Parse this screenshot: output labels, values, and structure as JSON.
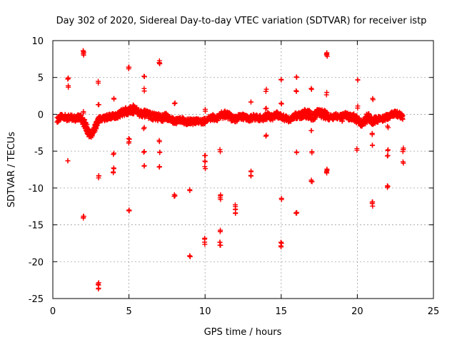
{
  "chart_data": {
    "type": "scatter",
    "title": "Day 302 of 2020, Sidereal Day-to-day VTEC variation (SDTVAR) for receiver istp",
    "xlabel": "GPS time / hours",
    "ylabel": "SDTVAR / TECUs",
    "xlim": [
      0,
      25
    ],
    "ylim": [
      -25,
      10
    ],
    "xticks": [
      0,
      5,
      10,
      15,
      20,
      25
    ],
    "xtick_labels": [
      "0",
      "5",
      "10",
      "15",
      "20",
      "25"
    ],
    "yticks": [
      -25,
      -20,
      -15,
      -10,
      -5,
      0,
      5,
      10
    ],
    "ytick_labels": [
      "-25",
      "-20",
      "-15",
      "-10",
      "-5",
      "0",
      "5",
      "10"
    ],
    "grid": true,
    "marker": "+",
    "color": "#ff0000",
    "series": [
      {
        "name": "SDTVAR",
        "band": [
          [
            0.3,
            -0.7,
            0.4
          ],
          [
            0.6,
            -0.2,
            0.4
          ],
          [
            0.9,
            -0.5,
            0.4
          ],
          [
            1.2,
            -0.4,
            0.4
          ],
          [
            1.5,
            -0.6,
            0.4
          ],
          [
            1.8,
            -0.3,
            0.4
          ],
          [
            2.0,
            -1.0,
            0.5
          ],
          [
            2.2,
            -1.8,
            0.6
          ],
          [
            2.4,
            -2.8,
            0.5
          ],
          [
            2.6,
            -2.5,
            0.5
          ],
          [
            2.8,
            -1.8,
            0.5
          ],
          [
            3.0,
            -0.7,
            0.4
          ],
          [
            3.3,
            -0.6,
            0.4
          ],
          [
            3.6,
            -0.4,
            0.4
          ],
          [
            3.9,
            -0.2,
            0.4
          ],
          [
            4.2,
            -0.2,
            0.4
          ],
          [
            4.5,
            0.2,
            0.5
          ],
          [
            4.8,
            0.4,
            0.5
          ],
          [
            5.1,
            0.5,
            0.6
          ],
          [
            5.4,
            0.6,
            0.5
          ],
          [
            5.7,
            0.2,
            0.5
          ],
          [
            6.0,
            0.1,
            0.5
          ],
          [
            6.3,
            -0.1,
            0.5
          ],
          [
            6.6,
            -0.3,
            0.5
          ],
          [
            6.9,
            -0.4,
            0.5
          ],
          [
            7.2,
            -0.5,
            0.5
          ],
          [
            7.5,
            -0.3,
            0.5
          ],
          [
            7.8,
            -0.8,
            0.4
          ],
          [
            8.1,
            -0.9,
            0.4
          ],
          [
            8.4,
            -0.7,
            0.4
          ],
          [
            8.7,
            -1.0,
            0.4
          ],
          [
            9.0,
            -1.0,
            0.4
          ],
          [
            9.3,
            -1.0,
            0.4
          ],
          [
            9.6,
            -0.9,
            0.4
          ],
          [
            9.9,
            -1.0,
            0.4
          ],
          [
            10.2,
            -0.6,
            0.4
          ],
          [
            10.5,
            -0.4,
            0.4
          ],
          [
            10.8,
            -0.6,
            0.4
          ],
          [
            11.1,
            -0.1,
            0.5
          ],
          [
            11.4,
            0.0,
            0.5
          ],
          [
            11.7,
            -0.4,
            0.5
          ],
          [
            12.0,
            -0.7,
            0.4
          ],
          [
            12.3,
            -0.3,
            0.4
          ],
          [
            12.6,
            -0.4,
            0.4
          ],
          [
            12.9,
            -0.6,
            0.4
          ],
          [
            13.2,
            -0.4,
            0.4
          ],
          [
            13.5,
            -0.5,
            0.4
          ],
          [
            13.8,
            -0.5,
            0.4
          ],
          [
            14.1,
            -0.2,
            0.5
          ],
          [
            14.4,
            -0.4,
            0.4
          ],
          [
            14.7,
            -0.1,
            0.5
          ],
          [
            15.0,
            -0.3,
            0.4
          ],
          [
            15.3,
            -0.6,
            0.4
          ],
          [
            15.6,
            -0.7,
            0.4
          ],
          [
            15.9,
            -0.2,
            0.4
          ],
          [
            16.2,
            -0.2,
            0.5
          ],
          [
            16.5,
            0.1,
            0.6
          ],
          [
            16.8,
            0.0,
            0.6
          ],
          [
            17.1,
            -0.4,
            0.5
          ],
          [
            17.4,
            0.2,
            0.6
          ],
          [
            17.7,
            0.1,
            0.6
          ],
          [
            18.0,
            -0.1,
            0.6
          ],
          [
            18.3,
            -0.5,
            0.4
          ],
          [
            18.6,
            -0.3,
            0.4
          ],
          [
            18.9,
            -0.4,
            0.4
          ],
          [
            19.2,
            -0.1,
            0.4
          ],
          [
            19.5,
            -0.4,
            0.5
          ],
          [
            19.8,
            -0.4,
            0.5
          ],
          [
            20.1,
            -1.0,
            0.6
          ],
          [
            20.4,
            -1.2,
            0.5
          ],
          [
            20.7,
            -0.3,
            0.6
          ],
          [
            21.0,
            -0.9,
            0.5
          ],
          [
            21.3,
            -0.7,
            0.4
          ],
          [
            21.6,
            -0.6,
            0.4
          ],
          [
            21.9,
            -0.4,
            0.4
          ],
          [
            22.2,
            -0.1,
            0.4
          ],
          [
            22.5,
            0.1,
            0.4
          ],
          [
            22.8,
            -0.1,
            0.4
          ],
          [
            23.0,
            -0.4,
            0.3
          ]
        ],
        "clusters": [
          [
            1.0,
            4.8,
            3
          ],
          [
            1.0,
            3.7,
            2
          ],
          [
            1.0,
            -6.5,
            2
          ],
          [
            2.0,
            8.5,
            3
          ],
          [
            2.0,
            8.2,
            2
          ],
          [
            2.0,
            0.3,
            2
          ],
          [
            2.0,
            -14.0,
            4
          ],
          [
            2.2,
            -2.2,
            2
          ],
          [
            2.4,
            -2.0,
            2
          ],
          [
            3.0,
            4.4,
            2
          ],
          [
            3.0,
            1.5,
            2
          ],
          [
            3.0,
            -8.5,
            3
          ],
          [
            3.0,
            -23.0,
            3
          ],
          [
            3.0,
            -23.5,
            2
          ],
          [
            4.0,
            2.1,
            2
          ],
          [
            4.0,
            -5.3,
            2
          ],
          [
            4.0,
            -7.2,
            2
          ],
          [
            4.0,
            -7.8,
            2
          ],
          [
            5.0,
            6.3,
            3
          ],
          [
            5.0,
            -3.4,
            2
          ],
          [
            5.0,
            -3.8,
            2
          ],
          [
            5.0,
            -13.1,
            3
          ],
          [
            5.3,
            1.3,
            2
          ],
          [
            6.0,
            5.2,
            2
          ],
          [
            6.0,
            3.3,
            2
          ],
          [
            6.0,
            -1.8,
            2
          ],
          [
            6.0,
            -5.1,
            2
          ],
          [
            6.0,
            -7.0,
            2
          ],
          [
            7.0,
            7.0,
            3
          ],
          [
            7.0,
            7.2,
            2
          ],
          [
            7.0,
            -3.6,
            2
          ],
          [
            7.0,
            -5.3,
            2
          ],
          [
            7.0,
            -7.1,
            3
          ],
          [
            8.0,
            1.6,
            2
          ],
          [
            8.0,
            -11.1,
            3
          ],
          [
            9.0,
            -10.2,
            2
          ],
          [
            9.0,
            -19.3,
            3
          ],
          [
            10.0,
            0.6,
            2
          ],
          [
            10.0,
            -5.7,
            2
          ],
          [
            10.0,
            -6.3,
            2
          ],
          [
            10.0,
            -7.2,
            2
          ],
          [
            10.0,
            -17.0,
            2
          ],
          [
            10.0,
            -17.5,
            2
          ],
          [
            11.0,
            -4.9,
            2
          ],
          [
            11.0,
            -10.9,
            2
          ],
          [
            11.0,
            -11.4,
            2
          ],
          [
            11.0,
            -15.8,
            3
          ],
          [
            11.0,
            -17.2,
            2
          ],
          [
            11.0,
            -17.7,
            2
          ],
          [
            12.0,
            -12.4,
            2
          ],
          [
            12.0,
            -12.9,
            2
          ],
          [
            12.0,
            -13.4,
            2
          ],
          [
            13.0,
            1.7,
            2
          ],
          [
            13.0,
            -7.9,
            2
          ],
          [
            13.0,
            -8.3,
            2
          ],
          [
            14.0,
            3.3,
            2
          ],
          [
            14.0,
            0.8,
            2
          ],
          [
            14.0,
            -2.9,
            2
          ],
          [
            15.0,
            4.6,
            2
          ],
          [
            15.0,
            1.6,
            2
          ],
          [
            15.0,
            -11.5,
            2
          ],
          [
            15.0,
            -17.5,
            3
          ],
          [
            15.0,
            -17.9,
            2
          ],
          [
            16.0,
            5.0,
            2
          ],
          [
            16.0,
            3.0,
            2
          ],
          [
            16.0,
            -5.3,
            2
          ],
          [
            16.0,
            -13.3,
            3
          ],
          [
            17.0,
            3.5,
            2
          ],
          [
            17.0,
            -2.2,
            2
          ],
          [
            17.0,
            -5.1,
            2
          ],
          [
            17.0,
            -9.1,
            3
          ],
          [
            18.0,
            8.3,
            3
          ],
          [
            18.0,
            8.0,
            2
          ],
          [
            18.0,
            2.8,
            2
          ],
          [
            18.0,
            -7.5,
            3
          ],
          [
            18.0,
            -7.9,
            2
          ],
          [
            19.0,
            -0.8,
            2
          ],
          [
            20.0,
            4.8,
            2
          ],
          [
            20.0,
            1.0,
            2
          ],
          [
            20.0,
            -4.7,
            2
          ],
          [
            21.0,
            2.1,
            2
          ],
          [
            21.0,
            -2.6,
            2
          ],
          [
            21.0,
            -4.1,
            2
          ],
          [
            21.0,
            -12.0,
            2
          ],
          [
            21.0,
            -12.3,
            2
          ],
          [
            22.0,
            -1.7,
            2
          ],
          [
            22.0,
            -5.0,
            2
          ],
          [
            22.0,
            -5.6,
            2
          ],
          [
            22.0,
            -9.8,
            3
          ],
          [
            23.0,
            -4.6,
            2
          ],
          [
            23.0,
            -4.9,
            2
          ],
          [
            23.0,
            -6.6,
            2
          ]
        ]
      }
    ]
  }
}
